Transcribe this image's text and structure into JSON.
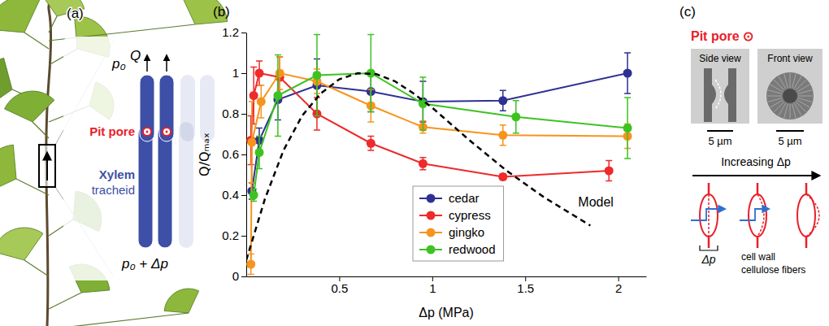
{
  "chart_data": {
    "type": "line",
    "panel_label": "(b)",
    "x_label": "Δp (MPa)",
    "y_label": "Q/Qₘₐₓ",
    "xlim": [
      0,
      2.15
    ],
    "ylim": [
      0,
      1.2
    ],
    "xticks": [
      0.5,
      1,
      1.5,
      2
    ],
    "yticks": [
      0,
      0.2,
      0.4,
      0.6,
      0.8,
      1,
      1.2
    ],
    "legend": "bottom",
    "series": [
      {
        "name": "cedar",
        "color": "#2e3192",
        "marker": "circle",
        "x": [
          0.03,
          0.07,
          0.17,
          0.38,
          0.67,
          0.95,
          1.38,
          2.05
        ],
        "values": [
          0.42,
          0.67,
          0.87,
          0.94,
          0.91,
          0.86,
          0.865,
          1.0
        ],
        "errors": [
          0.04,
          0.06,
          0.1,
          0.13,
          0.1,
          0.1,
          0.05,
          0.1
        ]
      },
      {
        "name": "cypress",
        "color": "#ee2a2a",
        "marker": "circle",
        "x": [
          0.025,
          0.04,
          0.07,
          0.18,
          0.38,
          0.67,
          0.95,
          1.38,
          1.95
        ],
        "values": [
          0.67,
          0.89,
          1.0,
          0.98,
          0.8,
          0.655,
          0.555,
          0.49,
          0.52
        ],
        "errors": [
          0.12,
          0.14,
          0.06,
          0.1,
          0.08,
          0.035,
          0.03,
          0.015,
          0.05
        ]
      },
      {
        "name": "gingko",
        "color": "#f7941d",
        "marker": "circle",
        "x": [
          0.025,
          0.03,
          0.08,
          0.18,
          0.38,
          0.67,
          0.95,
          1.38,
          2.05
        ],
        "values": [
          0.06,
          0.66,
          0.86,
          1.0,
          0.96,
          0.84,
          0.735,
          0.695,
          0.69
        ],
        "errors": [
          0.05,
          0.2,
          0.08,
          0.08,
          0.06,
          0.08,
          0.03,
          0.05,
          0.06
        ]
      },
      {
        "name": "redwood",
        "color": "#3dc321",
        "marker": "circle",
        "x": [
          0.04,
          0.07,
          0.17,
          0.38,
          0.67,
          0.95,
          1.45,
          2.05
        ],
        "values": [
          0.4,
          0.61,
          0.89,
          0.99,
          1.0,
          0.85,
          0.785,
          0.73
        ],
        "errors": [
          0.03,
          0.08,
          0.2,
          0.2,
          0.19,
          0.13,
          0.08,
          0.15
        ]
      },
      {
        "name": "Model",
        "color": "#000000",
        "marker": "none",
        "line_style": "dashed",
        "x": [
          0,
          0.1,
          0.2,
          0.3,
          0.4,
          0.5,
          0.6,
          0.7,
          0.8,
          0.9,
          1.0,
          1.2,
          1.4,
          1.6,
          1.85
        ],
        "values": [
          0.08,
          0.38,
          0.62,
          0.79,
          0.9,
          0.97,
          1.0,
          0.995,
          0.96,
          0.9,
          0.83,
          0.67,
          0.52,
          0.39,
          0.25
        ]
      }
    ]
  },
  "panel_a": {
    "label": "(a)",
    "p_top": "p₀",
    "flow": "Q",
    "pit_pore": "Pit pore",
    "xylem": "Xylem",
    "tracheid": "tracheid",
    "p_bottom": "p₀ + Δp"
  },
  "panel_c": {
    "label": "(c)",
    "title": "Pit pore ⊙",
    "side_view": "Side view",
    "front_view": "Front view",
    "scale_bars": [
      "5 µm",
      "5 µm"
    ],
    "arrow_label": "Increasing Δp",
    "dp_label": "Δp",
    "cell_wall": "cell wall",
    "fibers": "cellulose fibers"
  }
}
